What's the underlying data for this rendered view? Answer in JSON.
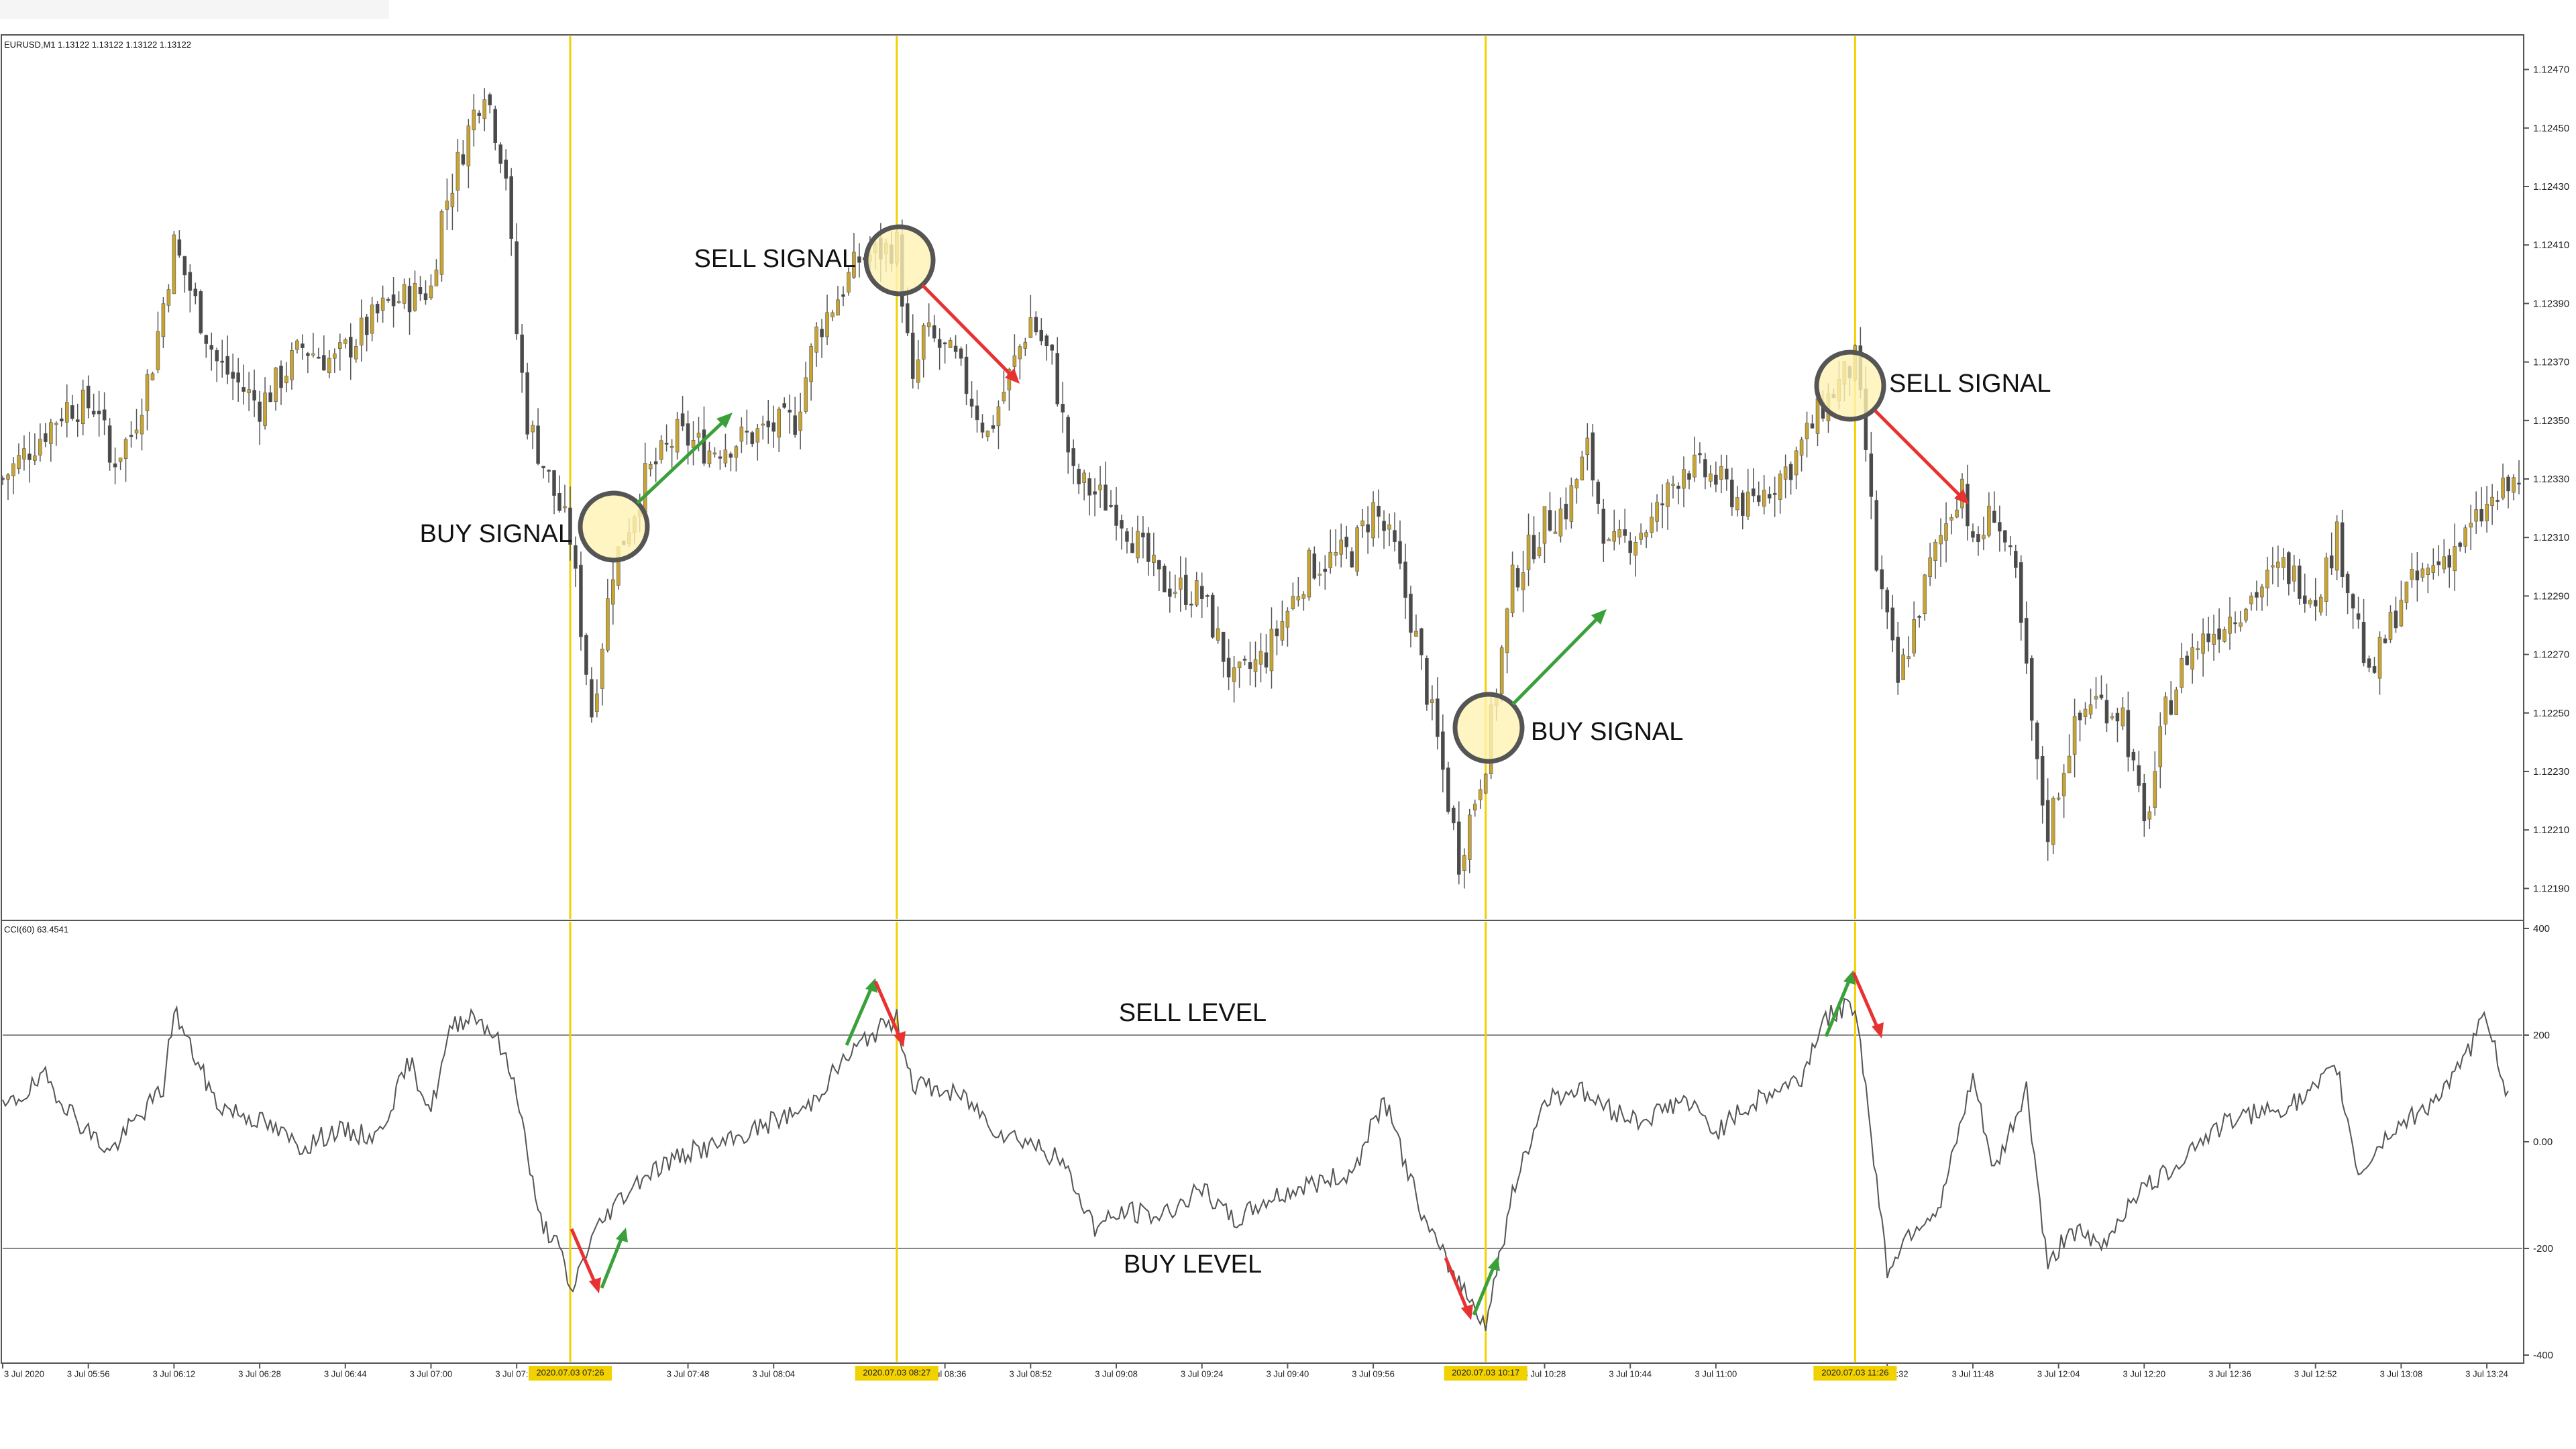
{
  "window": {
    "price_info": "EURUSD,M1  1.13122 1.13122 1.13122 1.13122",
    "cci_info": "CCI(60) 63.4541"
  },
  "colors": {
    "bull": "#c8a532",
    "bear": "#4a4a4a",
    "signal_line": "#f2d100",
    "highlight_circle": "#fff2b3",
    "up_arrow": "#3aa03a",
    "down_arrow": "#e83232",
    "grid": "#999999"
  },
  "price_axis": {
    "ticks": [
      "1.12470",
      "1.12450",
      "1.12430",
      "1.12410",
      "1.12390",
      "1.12370",
      "1.12350",
      "1.12330",
      "1.12310",
      "1.12290",
      "1.12270",
      "1.12250",
      "1.12230",
      "1.12210",
      "1.12190"
    ]
  },
  "cci_axis": {
    "ticks": [
      "400",
      "200",
      "0.00",
      "-200",
      "-400"
    ]
  },
  "time_axis": {
    "labels": [
      "3 Jul 2020",
      "3 Jul 05:56",
      "3 Jul 06:12",
      "3 Jul 06:28",
      "3 Jul 06:44",
      "3 Jul 07:00",
      "3 Jul 07:16",
      "3 Jul 07:48",
      "3 Jul 08:04",
      "3 Jul 08:36",
      "3 Jul 08:52",
      "3 Jul 09:08",
      "3 Jul 09:24",
      "3 Jul 09:40",
      "3 Jul 09:56",
      "3 Jul 10:28",
      "3 Jul 10:44",
      "3 Jul 11:00",
      "3 Jul 11:32",
      "3 Jul 11:48",
      "3 Jul 12:04",
      "3 Jul 12:20",
      "3 Jul 12:36",
      "3 Jul 12:52",
      "3 Jul 13:08",
      "3 Jul 13:24"
    ],
    "highlighted": [
      "2020.07.03 07:26",
      "2020.07.03 08:27",
      "2020.07.03 10:17",
      "2020.07.03 11:26"
    ]
  },
  "annotations": {
    "buy_signal_1": "BUY SIGNAL",
    "sell_signal_1": "SELL SIGNAL",
    "buy_signal_2": "BUY SIGNAL",
    "sell_signal_2": "SELL SIGNAL",
    "sell_level": "SELL LEVEL",
    "buy_level": "BUY LEVEL"
  },
  "chart_data": [
    {
      "type": "candlestick",
      "symbol": "EURUSD",
      "timeframe": "M1",
      "ylim": [
        1.1218,
        1.1248
      ],
      "x_range": [
        "05:40",
        "13:30"
      ],
      "signal_times": [
        "07:26",
        "08:27",
        "10:17",
        "11:26"
      ],
      "close_path": [
        [
          "05:40",
          1.1233
        ],
        [
          "05:52",
          1.12355
        ],
        [
          "05:58",
          1.12355
        ],
        [
          "06:00",
          1.12335
        ],
        [
          "06:04",
          1.12345
        ],
        [
          "06:08",
          1.1237
        ],
        [
          "06:12",
          1.1241
        ],
        [
          "06:14",
          1.124
        ],
        [
          "06:20",
          1.1237
        ],
        [
          "06:28",
          1.12355
        ],
        [
          "06:36",
          1.12375
        ],
        [
          "06:42",
          1.1237
        ],
        [
          "06:52",
          1.1239
        ],
        [
          "07:00",
          1.12395
        ],
        [
          "07:02",
          1.1242
        ],
        [
          "07:08",
          1.12455
        ],
        [
          "07:10",
          1.12465
        ],
        [
          "07:14",
          1.12435
        ],
        [
          "07:16",
          1.1238
        ],
        [
          "07:18",
          1.1235
        ],
        [
          "07:22",
          1.1233
        ],
        [
          "07:26",
          1.1231
        ],
        [
          "07:30",
          1.1225
        ],
        [
          "07:34",
          1.123
        ],
        [
          "07:40",
          1.1233
        ],
        [
          "07:46",
          1.12345
        ],
        [
          "07:52",
          1.1234
        ],
        [
          "08:00",
          1.12345
        ],
        [
          "08:08",
          1.1235
        ],
        [
          "08:12",
          1.1238
        ],
        [
          "08:20",
          1.12405
        ],
        [
          "08:27",
          1.1241
        ],
        [
          "08:30",
          1.1236
        ],
        [
          "08:32",
          1.1238
        ],
        [
          "08:38",
          1.1237
        ],
        [
          "08:44",
          1.12345
        ],
        [
          "08:52",
          1.12385
        ],
        [
          "08:56",
          1.1237
        ],
        [
          "09:00",
          1.1233
        ],
        [
          "09:08",
          1.1232
        ],
        [
          "09:16",
          1.12295
        ],
        [
          "09:24",
          1.1229
        ],
        [
          "09:30",
          1.1226
        ],
        [
          "09:36",
          1.1227
        ],
        [
          "09:44",
          1.123
        ],
        [
          "09:52",
          1.12305
        ],
        [
          "09:56",
          1.1232
        ],
        [
          "10:00",
          1.12305
        ],
        [
          "10:04",
          1.12275
        ],
        [
          "10:08",
          1.1224
        ],
        [
          "10:12",
          1.122
        ],
        [
          "10:17",
          1.12235
        ],
        [
          "10:22",
          1.12295
        ],
        [
          "10:28",
          1.12315
        ],
        [
          "10:32",
          1.1232
        ],
        [
          "10:36",
          1.1234
        ],
        [
          "10:40",
          1.12305
        ],
        [
          "10:48",
          1.12315
        ],
        [
          "10:54",
          1.12335
        ],
        [
          "11:00",
          1.1233
        ],
        [
          "11:06",
          1.1232
        ],
        [
          "11:14",
          1.12335
        ],
        [
          "11:20",
          1.12355
        ],
        [
          "11:26",
          1.1237
        ],
        [
          "11:28",
          1.1234
        ],
        [
          "11:30",
          1.123
        ],
        [
          "11:34",
          1.1226
        ],
        [
          "11:40",
          1.123
        ],
        [
          "11:46",
          1.1233
        ],
        [
          "11:48",
          1.12305
        ],
        [
          "11:52",
          1.1232
        ],
        [
          "11:56",
          1.12295
        ],
        [
          "12:00",
          1.1223
        ],
        [
          "12:02",
          1.1221
        ],
        [
          "12:06",
          1.1224
        ],
        [
          "12:10",
          1.12255
        ],
        [
          "12:16",
          1.1225
        ],
        [
          "12:20",
          1.1221
        ],
        [
          "12:24",
          1.1225
        ],
        [
          "12:28",
          1.1227
        ],
        [
          "12:34",
          1.1228
        ],
        [
          "12:40",
          1.1229
        ],
        [
          "12:46",
          1.123
        ],
        [
          "12:52",
          1.1229
        ],
        [
          "12:56",
          1.1231
        ],
        [
          "13:00",
          1.1228
        ],
        [
          "13:02",
          1.1226
        ],
        [
          "13:08",
          1.1229
        ],
        [
          "13:14",
          1.123
        ],
        [
          "13:20",
          1.1231
        ],
        [
          "13:24",
          1.1232
        ],
        [
          "13:30",
          1.1233
        ]
      ]
    },
    {
      "type": "line",
      "title": "CCI(60) 63.4541",
      "ylim": [
        -400,
        400
      ],
      "levels": [
        200,
        -200
      ],
      "series": [
        {
          "name": "CCI(60)",
          "points": [
            [
              "05:40",
              60
            ],
            [
              "05:48",
              120
            ],
            [
              "05:54",
              40
            ],
            [
              "06:00",
              -20
            ],
            [
              "06:04",
              30
            ],
            [
              "06:10",
              100
            ],
            [
              "06:12",
              250
            ],
            [
              "06:14",
              200
            ],
            [
              "06:20",
              70
            ],
            [
              "06:28",
              40
            ],
            [
              "06:36",
              -10
            ],
            [
              "06:42",
              20
            ],
            [
              "06:50",
              10
            ],
            [
              "06:56",
              150
            ],
            [
              "07:00",
              60
            ],
            [
              "07:04",
              220
            ],
            [
              "07:08",
              240
            ],
            [
              "07:12",
              200
            ],
            [
              "07:16",
              100
            ],
            [
              "07:20",
              -140
            ],
            [
              "07:24",
              -200
            ],
            [
              "07:26",
              -285
            ],
            [
              "07:30",
              -180
            ],
            [
              "07:34",
              -120
            ],
            [
              "07:40",
              -60
            ],
            [
              "07:48",
              -20
            ],
            [
              "07:56",
              0
            ],
            [
              "08:04",
              40
            ],
            [
              "08:10",
              60
            ],
            [
              "08:16",
              140
            ],
            [
              "08:22",
              200
            ],
            [
              "08:27",
              230
            ],
            [
              "08:30",
              110
            ],
            [
              "08:34",
              100
            ],
            [
              "08:40",
              80
            ],
            [
              "08:46",
              20
            ],
            [
              "08:52",
              0
            ],
            [
              "08:58",
              -40
            ],
            [
              "09:04",
              -160
            ],
            [
              "09:10",
              -130
            ],
            [
              "09:16",
              -140
            ],
            [
              "09:24",
              -90
            ],
            [
              "09:30",
              -150
            ],
            [
              "09:36",
              -110
            ],
            [
              "09:44",
              -80
            ],
            [
              "09:52",
              -60
            ],
            [
              "09:58",
              80
            ],
            [
              "10:02",
              -40
            ],
            [
              "10:06",
              -160
            ],
            [
              "10:10",
              -230
            ],
            [
              "10:17",
              -340
            ],
            [
              "10:22",
              -100
            ],
            [
              "10:28",
              80
            ],
            [
              "10:34",
              100
            ],
            [
              "10:40",
              60
            ],
            [
              "10:46",
              40
            ],
            [
              "10:54",
              80
            ],
            [
              "11:00",
              20
            ],
            [
              "11:08",
              80
            ],
            [
              "11:16",
              120
            ],
            [
              "11:20",
              230
            ],
            [
              "11:26",
              260
            ],
            [
              "11:28",
              100
            ],
            [
              "11:32",
              -240
            ],
            [
              "11:36",
              -170
            ],
            [
              "11:42",
              -120
            ],
            [
              "11:48",
              120
            ],
            [
              "11:52",
              -60
            ],
            [
              "11:58",
              100
            ],
            [
              "12:02",
              -240
            ],
            [
              "12:06",
              -160
            ],
            [
              "12:12",
              -200
            ],
            [
              "12:18",
              -100
            ],
            [
              "12:24",
              -60
            ],
            [
              "12:30",
              0
            ],
            [
              "12:36",
              40
            ],
            [
              "12:44",
              60
            ],
            [
              "12:50",
              80
            ],
            [
              "12:56",
              140
            ],
            [
              "13:00",
              -60
            ],
            [
              "13:06",
              20
            ],
            [
              "13:12",
              60
            ],
            [
              "13:18",
              120
            ],
            [
              "13:24",
              240
            ],
            [
              "13:28",
              80
            ]
          ]
        }
      ]
    }
  ]
}
